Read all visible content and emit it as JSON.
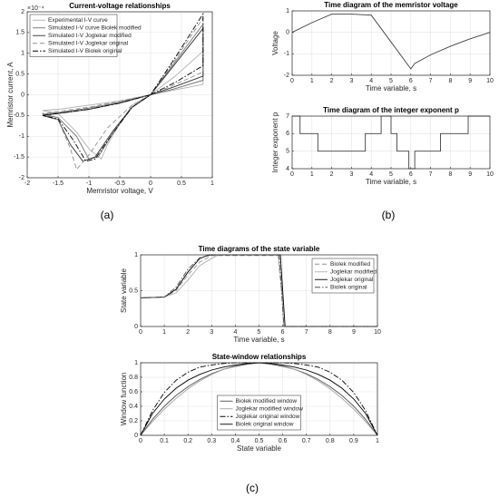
{
  "panel_labels": [
    "(a)",
    "(b)",
    "(c)"
  ],
  "chart_data": [
    {
      "type": "line",
      "title": "Current-voltage relationships",
      "xlabel": "Memristor voltage, V",
      "ylabel": "Memristor current, A",
      "y_multiplier": "×10⁻⁴",
      "xlim": [
        -2,
        1
      ],
      "xticks": [
        -2,
        -1.5,
        -1,
        -0.5,
        0,
        0.5,
        1
      ],
      "ylim": [
        -2,
        2
      ],
      "yticks": [
        -2,
        -1.5,
        -1,
        -0.5,
        0,
        0.5,
        1,
        1.5,
        2
      ],
      "grid": true,
      "legend": "upper left",
      "series": [
        {
          "name": "Experimental I-V curve",
          "color": "#b0b0b0",
          "linestyle": "solid",
          "x": [
            0,
            0.4,
            0.85,
            0.85,
            0.4,
            0,
            -0.5,
            -1,
            -1.5,
            -1.75,
            -1.5,
            -1.2,
            -1.0,
            -0.8,
            -0.7,
            -0.5,
            -0.3,
            0
          ],
          "values": [
            0,
            0.12,
            0.25,
            1.05,
            0.45,
            0,
            -0.15,
            -0.25,
            -0.35,
            -0.38,
            -0.45,
            -0.9,
            -1.3,
            -1.55,
            -1.2,
            -0.7,
            -0.25,
            0
          ]
        },
        {
          "name": "Simulated I-V curve Biolek modified",
          "color": "#707070",
          "linestyle": "solid",
          "x": [
            0,
            0.4,
            0.85,
            0.85,
            0.4,
            0,
            -0.5,
            -1,
            -1.5,
            -1.75,
            -1.5,
            -1.2,
            -1.0,
            -0.85,
            -0.6,
            -0.3,
            0
          ],
          "values": [
            0,
            0.15,
            0.35,
            1.7,
            0.8,
            0,
            -0.18,
            -0.32,
            -0.43,
            -0.47,
            -0.55,
            -1.0,
            -1.55,
            -1.5,
            -0.9,
            -0.3,
            0
          ]
        },
        {
          "name": "Simulated I-V Joglekar modified",
          "color": "#303030",
          "linestyle": "solid",
          "x": [
            0,
            0.4,
            0.85,
            0.85,
            0.4,
            0,
            -0.5,
            -1,
            -1.5,
            -1.75,
            -1.5,
            -1.3,
            -1.1,
            -0.9,
            -0.6,
            -0.3,
            0
          ],
          "values": [
            0,
            0.2,
            0.45,
            1.6,
            0.75,
            0,
            -0.2,
            -0.35,
            -0.45,
            -0.5,
            -0.6,
            -1.2,
            -1.6,
            -1.5,
            -0.85,
            -0.3,
            0
          ]
        },
        {
          "name": "Simulated I-V Joglekar original",
          "color": "#909090",
          "linestyle": "dashed",
          "x": [
            0,
            0.4,
            0.85,
            0.85,
            0.4,
            0,
            -0.5,
            -1,
            -1.5,
            -1.75,
            -1.5,
            -1.3,
            -1.2,
            -1.0,
            -0.7,
            -0.3,
            0
          ],
          "values": [
            0,
            0.25,
            0.55,
            1.85,
            0.85,
            0,
            -0.15,
            -0.3,
            -0.4,
            -0.45,
            -0.6,
            -1.3,
            -1.8,
            -1.45,
            -0.8,
            -0.25,
            0
          ]
        },
        {
          "name": "Simulated I-V Biolek original",
          "color": "#000000",
          "linestyle": "dashdot",
          "x": [
            0,
            0.4,
            0.85,
            0.85,
            0.4,
            0,
            -0.5,
            -1,
            -1.5,
            -1.75,
            -1.5,
            -1.25,
            -1.05,
            -0.9,
            -0.6,
            -0.3,
            0
          ],
          "values": [
            0,
            0.3,
            0.7,
            1.95,
            0.9,
            0,
            -0.2,
            -0.35,
            -0.45,
            -0.5,
            -0.58,
            -1.1,
            -1.6,
            -1.55,
            -0.9,
            -0.3,
            0
          ]
        }
      ]
    },
    {
      "type": "line",
      "title": "Time diagram of the memristor voltage",
      "xlabel": "Time variable, s",
      "ylabel": "Voltage",
      "xlim": [
        0,
        10
      ],
      "xticks": [
        0,
        1,
        2,
        3,
        4,
        5,
        6,
        7,
        8,
        9,
        10
      ],
      "ylim": [
        -2,
        1
      ],
      "yticks": [
        -2,
        -1,
        0,
        1
      ],
      "grid": true,
      "series": [
        {
          "color": "#404040",
          "linestyle": "solid",
          "x": [
            0,
            1,
            2,
            3,
            4,
            5,
            6,
            6.2,
            7,
            8,
            9,
            10
          ],
          "values": [
            0,
            0.45,
            0.85,
            0.85,
            0.8,
            -0.45,
            -1.7,
            -1.45,
            -1.05,
            -0.65,
            -0.3,
            0
          ]
        }
      ]
    },
    {
      "type": "line",
      "title": "Time diagram of the integer exponent p",
      "xlabel": "Time variable, s",
      "ylabel": "Integer exponent p",
      "xlim": [
        0,
        10
      ],
      "xticks": [
        0,
        1,
        2,
        3,
        4,
        5,
        6,
        7,
        8,
        9,
        10
      ],
      "ylim": [
        4,
        7
      ],
      "yticks": [
        4,
        5,
        6,
        7
      ],
      "grid": true,
      "series": [
        {
          "color": "#404040",
          "linestyle": "solid",
          "x": [
            0,
            0.4,
            0.4,
            1.3,
            1.3,
            3.7,
            3.7,
            4.5,
            4.5,
            5,
            5,
            5.3,
            5.3,
            5.9,
            5.9,
            6.2,
            6.2,
            7.5,
            7.5,
            8.9,
            8.9,
            10
          ],
          "values": [
            7,
            7,
            6,
            6,
            5,
            5,
            6,
            6,
            7,
            7,
            6,
            6,
            5,
            5,
            4,
            4,
            5,
            5,
            6,
            6,
            7,
            7
          ]
        }
      ]
    },
    {
      "type": "line",
      "title": "Time diagrams of the state variable",
      "xlabel": "Time variable, s",
      "ylabel": "State variable",
      "xlim": [
        0,
        10
      ],
      "xticks": [
        0,
        1,
        2,
        3,
        4,
        5,
        6,
        7,
        8,
        9,
        10
      ],
      "ylim": [
        0,
        1
      ],
      "yticks": [
        0,
        0.5,
        1
      ],
      "grid": true,
      "legend": "upper right",
      "series": [
        {
          "name": "Biolek modified",
          "color": "#909090",
          "linestyle": "dashed",
          "x": [
            0,
            1,
            1.5,
            2,
            2.5,
            3,
            5.8,
            5.95,
            6.05,
            10
          ],
          "values": [
            0.4,
            0.41,
            0.5,
            0.72,
            0.9,
            0.99,
            0.99,
            0.5,
            0,
            0
          ]
        },
        {
          "name": "Joglekar modified",
          "color": "#b0b0b0",
          "linestyle": "solid",
          "x": [
            0,
            1,
            1.5,
            2,
            2.5,
            3,
            3.3,
            5.8,
            5.95,
            6.05,
            10
          ],
          "values": [
            0.4,
            0.41,
            0.47,
            0.65,
            0.85,
            0.95,
            1,
            1,
            0.6,
            0,
            0
          ]
        },
        {
          "name": "Joglekar original",
          "color": "#000000",
          "linestyle": "solid",
          "x": [
            0,
            1,
            1.5,
            2,
            2.5,
            2.9,
            5.9,
            6,
            6.1,
            10
          ],
          "values": [
            0.4,
            0.41,
            0.52,
            0.76,
            0.95,
            1,
            1,
            0.5,
            0,
            0
          ]
        },
        {
          "name": "Biolek original",
          "color": "#505050",
          "linestyle": "dashdot",
          "x": [
            0,
            1,
            1.5,
            2,
            2.5,
            3,
            5.85,
            5.95,
            6.05,
            10
          ],
          "values": [
            0.4,
            0.41,
            0.55,
            0.8,
            0.96,
            1,
            1,
            0.5,
            0,
            0
          ]
        }
      ]
    },
    {
      "type": "line",
      "title": "State-window relationships",
      "xlabel": "State variable",
      "ylabel": "Window function",
      "xlim": [
        0,
        1
      ],
      "xticks": [
        0,
        0.1,
        0.2,
        0.3,
        0.4,
        0.5,
        0.6,
        0.7,
        0.8,
        0.9,
        1
      ],
      "ylim": [
        0,
        1
      ],
      "yticks": [
        0,
        0.2,
        0.4,
        0.6,
        0.8,
        1
      ],
      "grid": true,
      "legend": "lower center",
      "x": [
        0,
        0.05,
        0.1,
        0.15,
        0.2,
        0.25,
        0.3,
        0.35,
        0.4,
        0.45,
        0.5,
        0.55,
        0.6,
        0.65,
        0.7,
        0.75,
        0.8,
        0.85,
        0.9,
        0.95,
        1
      ],
      "series": [
        {
          "name": "Biolek modified window",
          "color": "#505050",
          "linestyle": "solid",
          "values": [
            0,
            0.22,
            0.4,
            0.55,
            0.67,
            0.77,
            0.85,
            0.91,
            0.95,
            0.98,
            1,
            0.98,
            0.95,
            0.91,
            0.85,
            0.77,
            0.67,
            0.55,
            0.4,
            0.22,
            0
          ]
        },
        {
          "name": "Joglekar modified window",
          "color": "#a0a0a0",
          "linestyle": "solid",
          "values": [
            0,
            0.19,
            0.36,
            0.51,
            0.64,
            0.75,
            0.84,
            0.91,
            0.96,
            0.99,
            1,
            0.99,
            0.96,
            0.91,
            0.84,
            0.75,
            0.64,
            0.51,
            0.36,
            0.19,
            0
          ]
        },
        {
          "name": "Joglekar original window",
          "color": "#000000",
          "linestyle": "dashdot",
          "values": [
            0,
            0.34,
            0.59,
            0.76,
            0.87,
            0.94,
            0.97,
            0.99,
            1,
            1,
            1,
            1,
            1,
            0.99,
            0.97,
            0.94,
            0.87,
            0.76,
            0.59,
            0.34,
            0
          ]
        },
        {
          "name": "Biolek original window",
          "color": "#000000",
          "linestyle": "solid",
          "values": [
            0,
            0.3,
            0.5,
            0.65,
            0.76,
            0.84,
            0.9,
            0.94,
            0.97,
            0.99,
            1,
            0.99,
            0.97,
            0.94,
            0.9,
            0.84,
            0.76,
            0.65,
            0.5,
            0.3,
            0
          ]
        }
      ]
    }
  ]
}
